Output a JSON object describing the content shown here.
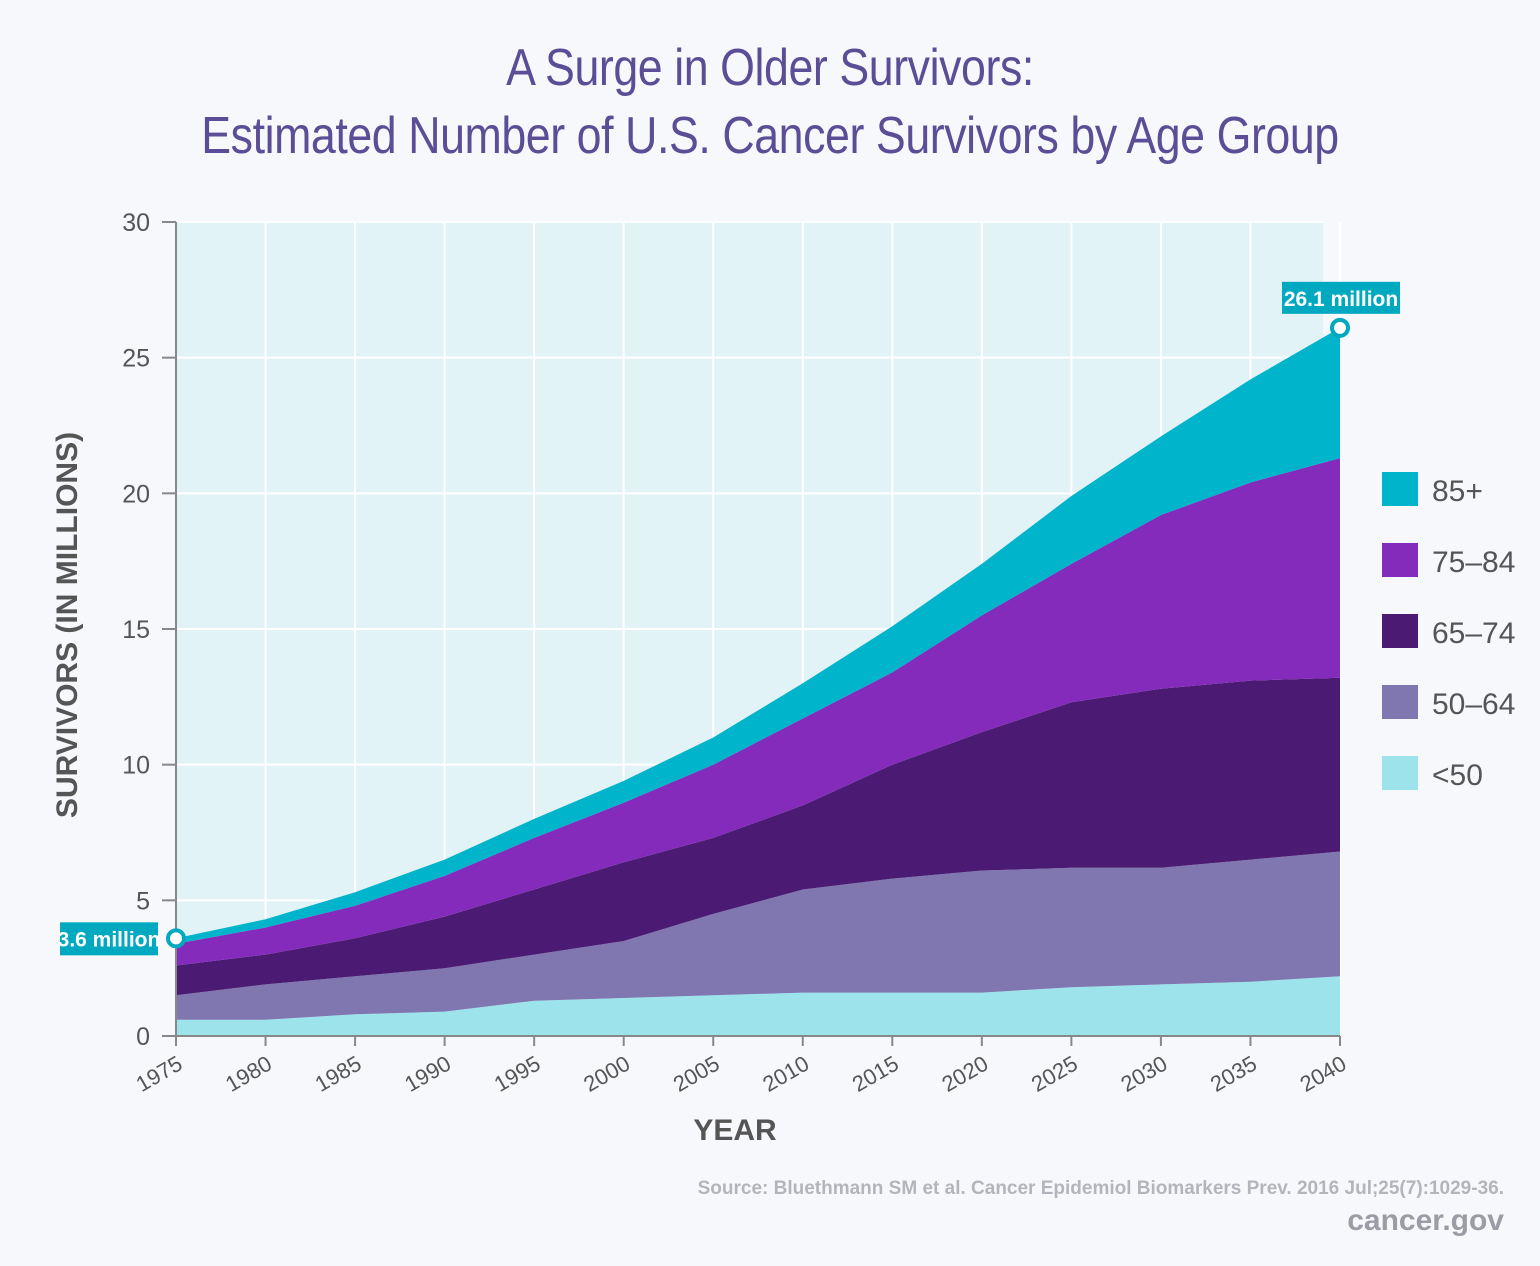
{
  "chart_data": {
    "type": "area",
    "stacked": true,
    "title": "A Surge in Older Survivors:",
    "subtitle": "Estimated Number of U.S. Cancer Survivors by Age Group",
    "xlabel": "YEAR",
    "ylabel": "SURVIVORS (IN MILLIONS)",
    "ylim": [
      0,
      30
    ],
    "xlim": [
      1975,
      2040
    ],
    "yticks": [
      "0",
      "5",
      "10",
      "15",
      "20",
      "25",
      "30"
    ],
    "xticks": [
      "1975",
      "1980",
      "1985",
      "1990",
      "1995",
      "2000",
      "2005",
      "2010",
      "2015",
      "2020",
      "2025",
      "2030",
      "2035",
      "2040"
    ],
    "grid": true,
    "legend_position": "right",
    "x": [
      1975,
      1980,
      1985,
      1990,
      1995,
      2000,
      2005,
      2010,
      2015,
      2020,
      2025,
      2030,
      2035,
      2040
    ],
    "series": [
      {
        "name": "<50",
        "color": "#9de3ec",
        "values": [
          0.6,
          0.6,
          0.8,
          0.9,
          1.3,
          1.4,
          1.5,
          1.6,
          1.6,
          1.6,
          1.8,
          1.9,
          2.0,
          2.2
        ]
      },
      {
        "name": "50–64",
        "color": "#8076b0",
        "values": [
          0.9,
          1.3,
          1.4,
          1.6,
          1.7,
          2.1,
          3.0,
          3.8,
          4.2,
          4.5,
          4.4,
          4.3,
          4.5,
          4.6
        ]
      },
      {
        "name": "65–74",
        "color": "#4b1a72",
        "values": [
          1.1,
          1.1,
          1.4,
          1.9,
          2.4,
          2.9,
          2.8,
          3.1,
          4.2,
          5.1,
          6.1,
          6.6,
          6.6,
          6.4
        ]
      },
      {
        "name": "75–84",
        "color": "#842bbb",
        "values": [
          0.8,
          1.0,
          1.2,
          1.5,
          1.9,
          2.2,
          2.7,
          3.2,
          3.4,
          4.3,
          5.1,
          6.4,
          7.3,
          8.1
        ]
      },
      {
        "name": "85+",
        "color": "#00b4cb",
        "values": [
          0.2,
          0.3,
          0.5,
          0.6,
          0.7,
          0.8,
          1.0,
          1.3,
          1.7,
          1.9,
          2.5,
          2.9,
          3.8,
          4.8
        ]
      }
    ],
    "annotations": [
      {
        "text": "3.6 million",
        "x": 1975,
        "y": 3.6
      },
      {
        "text": "26.1 million",
        "x": 2040,
        "y": 26.1
      }
    ],
    "colors": {
      "plot_bg": "#e1f3f6",
      "grid": "#ffffff",
      "axis": "#888888",
      "callout": "#00a9c0"
    }
  },
  "footer": {
    "source": "Source: Bluethmann SM et al. Cancer Epidemiol Biomarkers Prev. 2016 Jul;25(7):1029-36.",
    "brand": "cancer.gov"
  }
}
